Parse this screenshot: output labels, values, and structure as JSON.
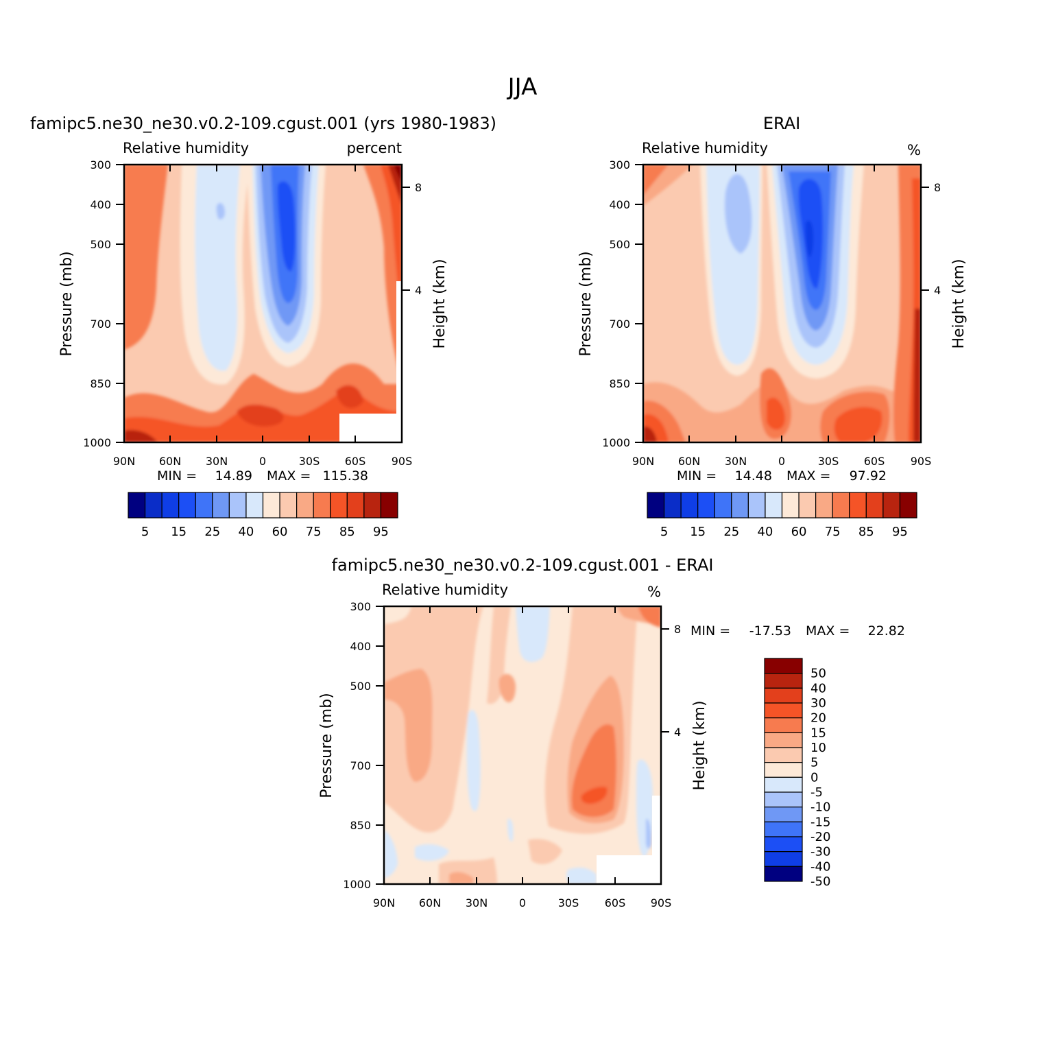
{
  "figure": {
    "title": "JJA"
  },
  "chart_data": [
    {
      "type": "heatmap",
      "title": "famipc5.ne30_ne30.v0.2-109.cgust.001 (yrs 1980-1983)",
      "left_label": "Relative humidity",
      "right_label": "percent",
      "xlabel": "",
      "ylabel": "Pressure (mb)",
      "ylabel_right": "Height (km)",
      "x_ticks": [
        "90N",
        "60N",
        "30N",
        "0",
        "30S",
        "60S",
        "90S"
      ],
      "y_ticks": [
        "300",
        "400",
        "500",
        "700",
        "850",
        "1000"
      ],
      "y_right_ticks": [
        "8",
        "4"
      ],
      "min_label": "MIN =",
      "min_value": "14.89",
      "max_label": "MAX =",
      "max_value": "115.38",
      "colorbar": {
        "orientation": "horizontal",
        "labels": [
          "5",
          "15",
          "25",
          "40",
          "60",
          "75",
          "85",
          "95"
        ],
        "colors": [
          "#000080",
          "#0a2dc8",
          "#0f3ee6",
          "#1c4ff5",
          "#3f74f8",
          "#6f98f5",
          "#aac4fa",
          "#d8e8fb",
          "#fde9d8",
          "#fbcab0",
          "#f9a985",
          "#f77b4f",
          "#f55427",
          "#e3401c",
          "#b8240f",
          "#880000"
        ]
      }
    },
    {
      "type": "heatmap",
      "title": "ERAI",
      "left_label": "Relative humidity",
      "right_label": "%",
      "xlabel": "",
      "ylabel": "Pressure (mb)",
      "ylabel_right": "Height (km)",
      "x_ticks": [
        "90N",
        "60N",
        "30N",
        "0",
        "30S",
        "60S",
        "90S"
      ],
      "y_ticks": [
        "300",
        "400",
        "500",
        "700",
        "850",
        "1000"
      ],
      "y_right_ticks": [
        "8",
        "4"
      ],
      "min_label": "MIN =",
      "min_value": "14.48",
      "max_label": "MAX =",
      "max_value": "97.92",
      "colorbar": {
        "orientation": "horizontal",
        "labels": [
          "5",
          "15",
          "25",
          "40",
          "60",
          "75",
          "85",
          "95"
        ],
        "colors": [
          "#000080",
          "#0a2dc8",
          "#0f3ee6",
          "#1c4ff5",
          "#3f74f8",
          "#6f98f5",
          "#aac4fa",
          "#d8e8fb",
          "#fde9d8",
          "#fbcab0",
          "#f9a985",
          "#f77b4f",
          "#f55427",
          "#e3401c",
          "#b8240f",
          "#880000"
        ]
      }
    },
    {
      "type": "heatmap",
      "title": "famipc5.ne30_ne30.v0.2-109.cgust.001 - ERAI",
      "left_label": "Relative humidity",
      "right_label": "%",
      "xlabel": "",
      "ylabel": "Pressure (mb)",
      "ylabel_right": "Height (km)",
      "x_ticks": [
        "90N",
        "60N",
        "30N",
        "0",
        "30S",
        "60S",
        "90S"
      ],
      "y_ticks": [
        "300",
        "400",
        "500",
        "700",
        "850",
        "1000"
      ],
      "y_right_ticks": [
        "8",
        "4"
      ],
      "min_label": "MIN =",
      "min_value": "-17.53",
      "max_label": "MAX =",
      "max_value": "22.82",
      "colorbar": {
        "orientation": "vertical",
        "labels": [
          "50",
          "40",
          "30",
          "20",
          "15",
          "10",
          "5",
          "0",
          "-5",
          "-10",
          "-15",
          "-20",
          "-30",
          "-40",
          "-50"
        ],
        "colors": [
          "#880000",
          "#b8240f",
          "#e3401c",
          "#f55427",
          "#f77b4f",
          "#f9a985",
          "#fbcab0",
          "#fde9d8",
          "#d8e8fb",
          "#aac4fa",
          "#6f98f5",
          "#3f74f8",
          "#1c4ff5",
          "#0f3ee6",
          "#000080"
        ]
      }
    }
  ]
}
